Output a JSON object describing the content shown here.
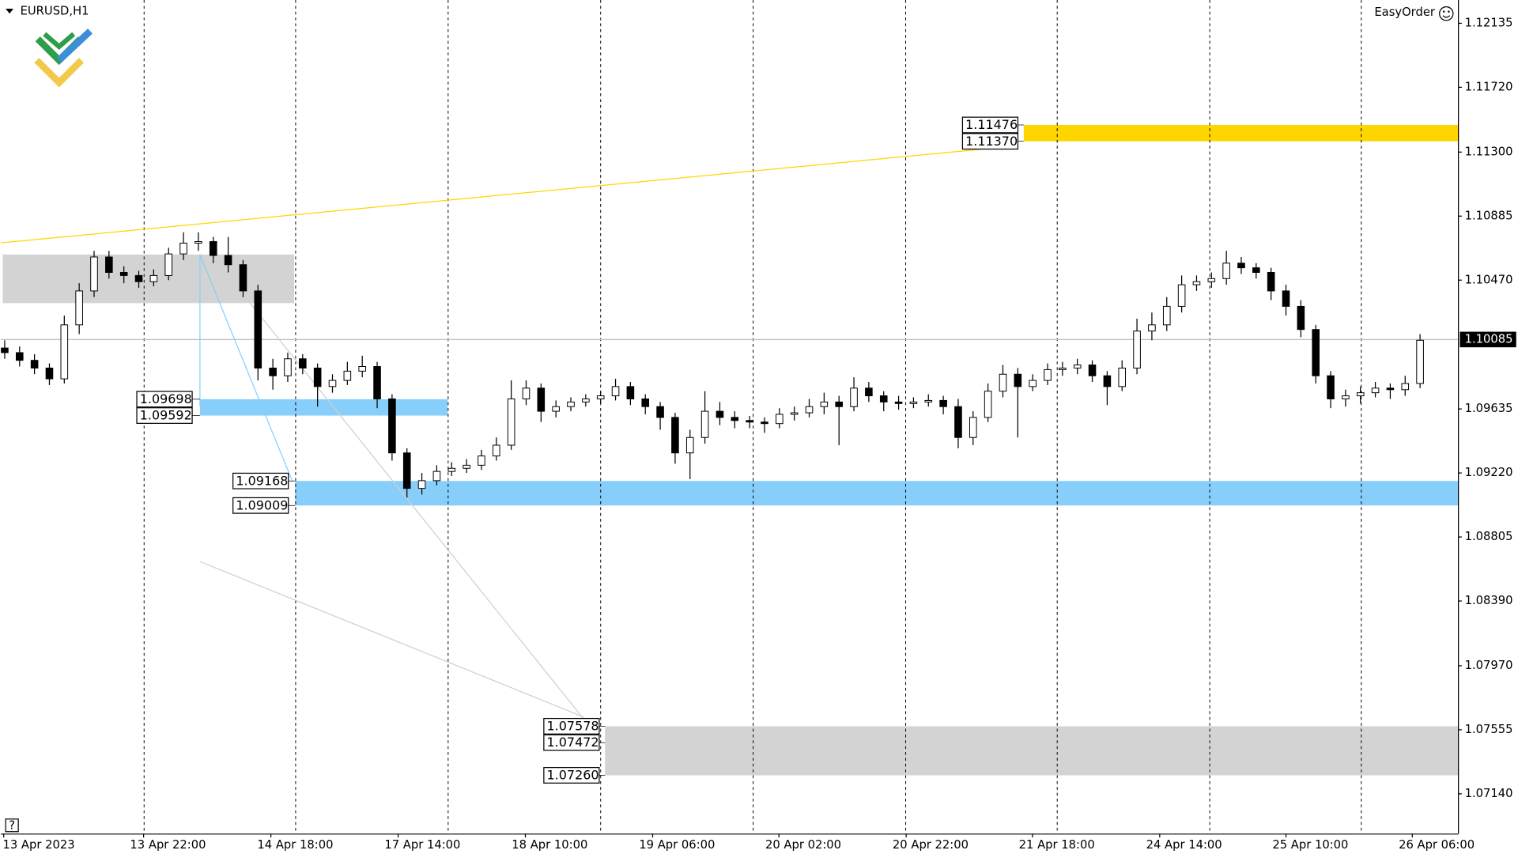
{
  "chart_data": {
    "type": "candlestick",
    "title": "EURUSD,H1",
    "tool": "EasyOrder",
    "help": "?",
    "ylim": [
      1.06882,
      1.12286
    ],
    "yticks": [
      1.12135,
      {
        "value": 1.1172,
        "label": "1.11720"
      },
      {
        "value": 1.113,
        "label": "1.11300"
      },
      1.10885,
      {
        "value": 1.1047,
        "label": "1.10470"
      },
      1.09635,
      {
        "value": 1.0922,
        "label": "1.09220"
      },
      1.08805,
      {
        "value": 1.0839,
        "label": "1.08390"
      },
      {
        "value": 1.0797,
        "label": "1.07970"
      },
      1.07555,
      {
        "value": 1.0714,
        "label": "1.07140"
      }
    ],
    "x_labels": [
      "13 Apr 2023",
      "13 Apr 22:00",
      "14 Apr 18:00",
      "17 Apr 14:00",
      "18 Apr 10:00",
      "19 Apr 06:00",
      "20 Apr 02:00",
      "20 Apr 22:00",
      "21 Apr 18:00",
      "24 Apr 14:00",
      "25 Apr 10:00",
      "26 Apr 06:00"
    ],
    "current_price": 1.10085,
    "up_color": "#ffffff",
    "down_color": "#000000",
    "zones": [
      {
        "color": "#ffd500",
        "levels": [
          1.11476,
          {
            "value": 1.1137,
            "label": "1.11370"
          }
        ],
        "show_labels": true
      },
      {
        "color": "#87cefa",
        "levels": [
          1.09698,
          1.09592
        ],
        "show_labels": true
      },
      {
        "color": "#87cefa",
        "levels": [
          1.09168,
          1.09009
        ],
        "show_labels": true
      },
      {
        "color": "#d3d3d3",
        "levels": [
          1.07578,
          1.07472,
          {
            "value": 1.0726,
            "label": "1.07260"
          }
        ],
        "show_labels": true
      },
      {
        "color": "#d3d3d3",
        "levels": [
          1.10636,
          1.10321
        ],
        "show_labels": false
      }
    ],
    "ohlc": [
      [
        1.1003,
        1.1008,
        1.0996,
        1.1
      ],
      [
        1.1,
        1.1004,
        1.0991,
        1.0995
      ],
      [
        1.0995,
        1.0999,
        1.0986,
        1.099
      ],
      [
        1.099,
        1.0993,
        1.0979,
        1.0983
      ],
      [
        1.0983,
        1.1024,
        1.098,
        1.1018
      ],
      [
        1.1018,
        1.1045,
        1.1012,
        1.104
      ],
      [
        1.104,
        1.1066,
        1.1036,
        1.1062
      ],
      [
        1.1062,
        1.1066,
        1.1048,
        1.1052
      ],
      [
        1.1052,
        1.1056,
        1.1045,
        1.105
      ],
      [
        1.105,
        1.1053,
        1.1042,
        1.1046
      ],
      [
        1.1046,
        1.1054,
        1.1043,
        1.105
      ],
      [
        1.105,
        1.1068,
        1.1047,
        1.1064
      ],
      [
        1.1064,
        1.1078,
        1.106,
        1.1071
      ],
      [
        1.1071,
        1.1078,
        1.1066,
        1.1072
      ],
      [
        1.1072,
        1.1075,
        1.1058,
        1.1063
      ],
      [
        1.1063,
        1.1075,
        1.1052,
        1.1057
      ],
      [
        1.1057,
        1.106,
        1.1036,
        1.104
      ],
      [
        1.104,
        1.1044,
        1.0982,
        1.099
      ],
      [
        1.099,
        1.0996,
        1.0976,
        1.0985
      ],
      [
        1.0985,
        1.1,
        1.0981,
        1.0996
      ],
      [
        1.0996,
        1.0999,
        1.0986,
        1.099
      ],
      [
        1.099,
        1.0993,
        1.0965,
        1.0978
      ],
      [
        1.0978,
        1.0986,
        1.0974,
        1.0982
      ],
      [
        1.0982,
        1.0994,
        1.0979,
        1.0988
      ],
      [
        1.0988,
        1.0998,
        1.0984,
        1.0991
      ],
      [
        1.0991,
        1.0994,
        1.0964,
        1.097
      ],
      [
        1.097,
        1.0973,
        1.093,
        1.0935
      ],
      [
        1.0935,
        1.0938,
        1.0906,
        1.0912
      ],
      [
        1.0912,
        1.0922,
        1.0908,
        1.0917
      ],
      [
        1.0917,
        1.0927,
        1.0914,
        1.0923
      ],
      [
        1.0923,
        1.0929,
        1.092,
        1.0925
      ],
      [
        1.0925,
        1.0931,
        1.0922,
        1.0927
      ],
      [
        1.0927,
        1.0937,
        1.0924,
        1.0933
      ],
      [
        1.0933,
        1.0945,
        1.093,
        1.094
      ],
      [
        1.094,
        1.0982,
        1.0937,
        1.097
      ],
      [
        1.097,
        1.0982,
        1.0966,
        1.0977
      ],
      [
        1.0977,
        1.098,
        1.0955,
        1.0962
      ],
      [
        1.0962,
        1.0969,
        1.0958,
        1.0965
      ],
      [
        1.0965,
        1.0971,
        1.0962,
        1.0968
      ],
      [
        1.0968,
        1.0973,
        1.0965,
        1.097
      ],
      [
        1.097,
        1.0975,
        1.0967,
        1.0972
      ],
      [
        1.0972,
        1.0983,
        1.0969,
        1.0978
      ],
      [
        1.0978,
        1.0981,
        1.0966,
        1.097
      ],
      [
        1.097,
        1.0973,
        1.096,
        1.0965
      ],
      [
        1.0965,
        1.0968,
        1.095,
        1.0958
      ],
      [
        1.0958,
        1.0961,
        1.0928,
        1.0935
      ],
      [
        1.0935,
        1.095,
        1.0918,
        1.0945
      ],
      [
        1.0945,
        1.0975,
        1.0941,
        1.0962
      ],
      [
        1.0962,
        1.0968,
        1.0953,
        1.0958
      ],
      [
        1.0958,
        1.0962,
        1.0951,
        1.0956
      ],
      [
        1.0956,
        1.0959,
        1.0951,
        1.0955
      ],
      [
        1.0955,
        1.0958,
        1.0948,
        1.0954
      ],
      [
        1.0954,
        1.0964,
        1.0951,
        1.096
      ],
      [
        1.096,
        1.0965,
        1.0956,
        1.0961
      ],
      [
        1.0961,
        1.097,
        1.0958,
        1.0965
      ],
      [
        1.0965,
        1.0974,
        1.096,
        1.0968
      ],
      [
        1.0968,
        1.0972,
        1.094,
        1.0965
      ],
      [
        1.0965,
        1.0984,
        1.0962,
        1.0977
      ],
      [
        1.0977,
        1.0981,
        1.0968,
        1.0972
      ],
      [
        1.0972,
        1.0975,
        1.0962,
        1.0968
      ],
      [
        1.0968,
        1.0972,
        1.0963,
        1.0967
      ],
      [
        1.0967,
        1.0971,
        1.0964,
        1.0968
      ],
      [
        1.0968,
        1.0973,
        1.0965,
        1.0969
      ],
      [
        1.0969,
        1.0972,
        1.096,
        1.0965
      ],
      [
        1.0965,
        1.097,
        1.0938,
        1.0945
      ],
      [
        1.0945,
        1.0962,
        1.094,
        1.0958
      ],
      [
        1.0958,
        1.098,
        1.0955,
        1.0975
      ],
      [
        1.0975,
        1.0992,
        1.0971,
        1.0986
      ],
      [
        1.0986,
        1.099,
        1.0945,
        1.0978
      ],
      [
        1.0978,
        1.0986,
        1.0975,
        1.0982
      ],
      [
        1.0982,
        1.0993,
        1.0979,
        1.0989
      ],
      [
        1.0989,
        1.0994,
        1.0985,
        1.099
      ],
      [
        1.099,
        1.0996,
        1.0986,
        1.0992
      ],
      [
        1.0992,
        1.0995,
        1.0981,
        1.0985
      ],
      [
        1.0985,
        1.0988,
        1.0966,
        1.0978
      ],
      [
        1.0978,
        1.0995,
        1.0975,
        1.099
      ],
      [
        1.099,
        1.1022,
        1.0986,
        1.1014
      ],
      [
        1.1014,
        1.1026,
        1.1008,
        1.1018
      ],
      [
        1.1018,
        1.1036,
        1.1014,
        1.103
      ],
      [
        1.103,
        1.105,
        1.1026,
        1.1044
      ],
      [
        1.1044,
        1.105,
        1.104,
        1.1046
      ],
      [
        1.1046,
        1.1052,
        1.1042,
        1.1048
      ],
      [
        1.1048,
        1.1066,
        1.1044,
        1.1058
      ],
      [
        1.1058,
        1.1062,
        1.1051,
        1.1055
      ],
      [
        1.1055,
        1.1058,
        1.1048,
        1.1052
      ],
      [
        1.1052,
        1.1055,
        1.1034,
        1.104
      ],
      [
        1.104,
        1.1044,
        1.1024,
        1.103
      ],
      [
        1.103,
        1.1034,
        1.101,
        1.1015
      ],
      [
        1.1015,
        1.1018,
        1.098,
        1.0985
      ],
      [
        1.0985,
        1.0988,
        1.0964,
        1.097
      ],
      [
        1.097,
        1.0976,
        1.0965,
        1.0972
      ],
      [
        1.0972,
        1.0978,
        1.0967,
        1.0974
      ],
      [
        1.0974,
        1.0981,
        1.0971,
        1.0977
      ],
      [
        1.0977,
        1.098,
        1.097,
        1.0976
      ],
      [
        1.0976,
        1.0985,
        1.0972,
        1.098
      ],
      [
        1.098,
        1.1012,
        1.0977,
        1.1008
      ]
    ]
  }
}
